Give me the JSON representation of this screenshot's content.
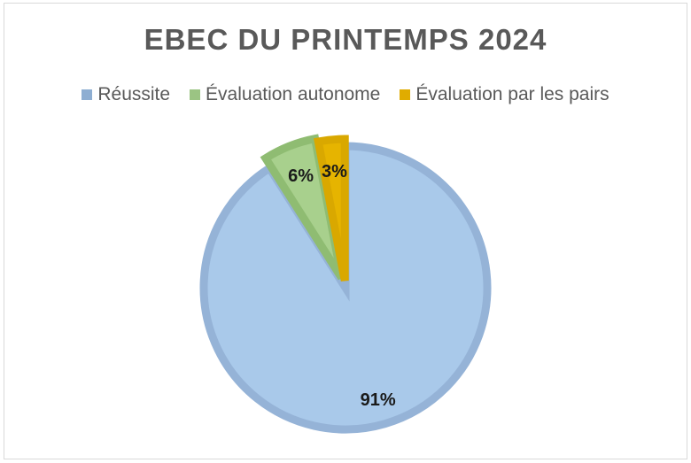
{
  "chart_data": {
    "type": "pie",
    "title": "EBEC DU PRINTEMPS 2024",
    "legend_position": "top",
    "categories": [
      "Réussite",
      "Évaluation autonome",
      "Évaluation par les pairs"
    ],
    "values": [
      91,
      6,
      3
    ],
    "value_labels": [
      "91%",
      "6%",
      "3%"
    ],
    "colors": [
      "#a9c9ea",
      "#a8d08d",
      "#e6b400"
    ],
    "border_colors": [
      "#95b3d7",
      "#8fbc72",
      "#d9a800"
    ],
    "legend_colors": [
      "#8eaed2",
      "#9bc483",
      "#e0ac00"
    ]
  }
}
